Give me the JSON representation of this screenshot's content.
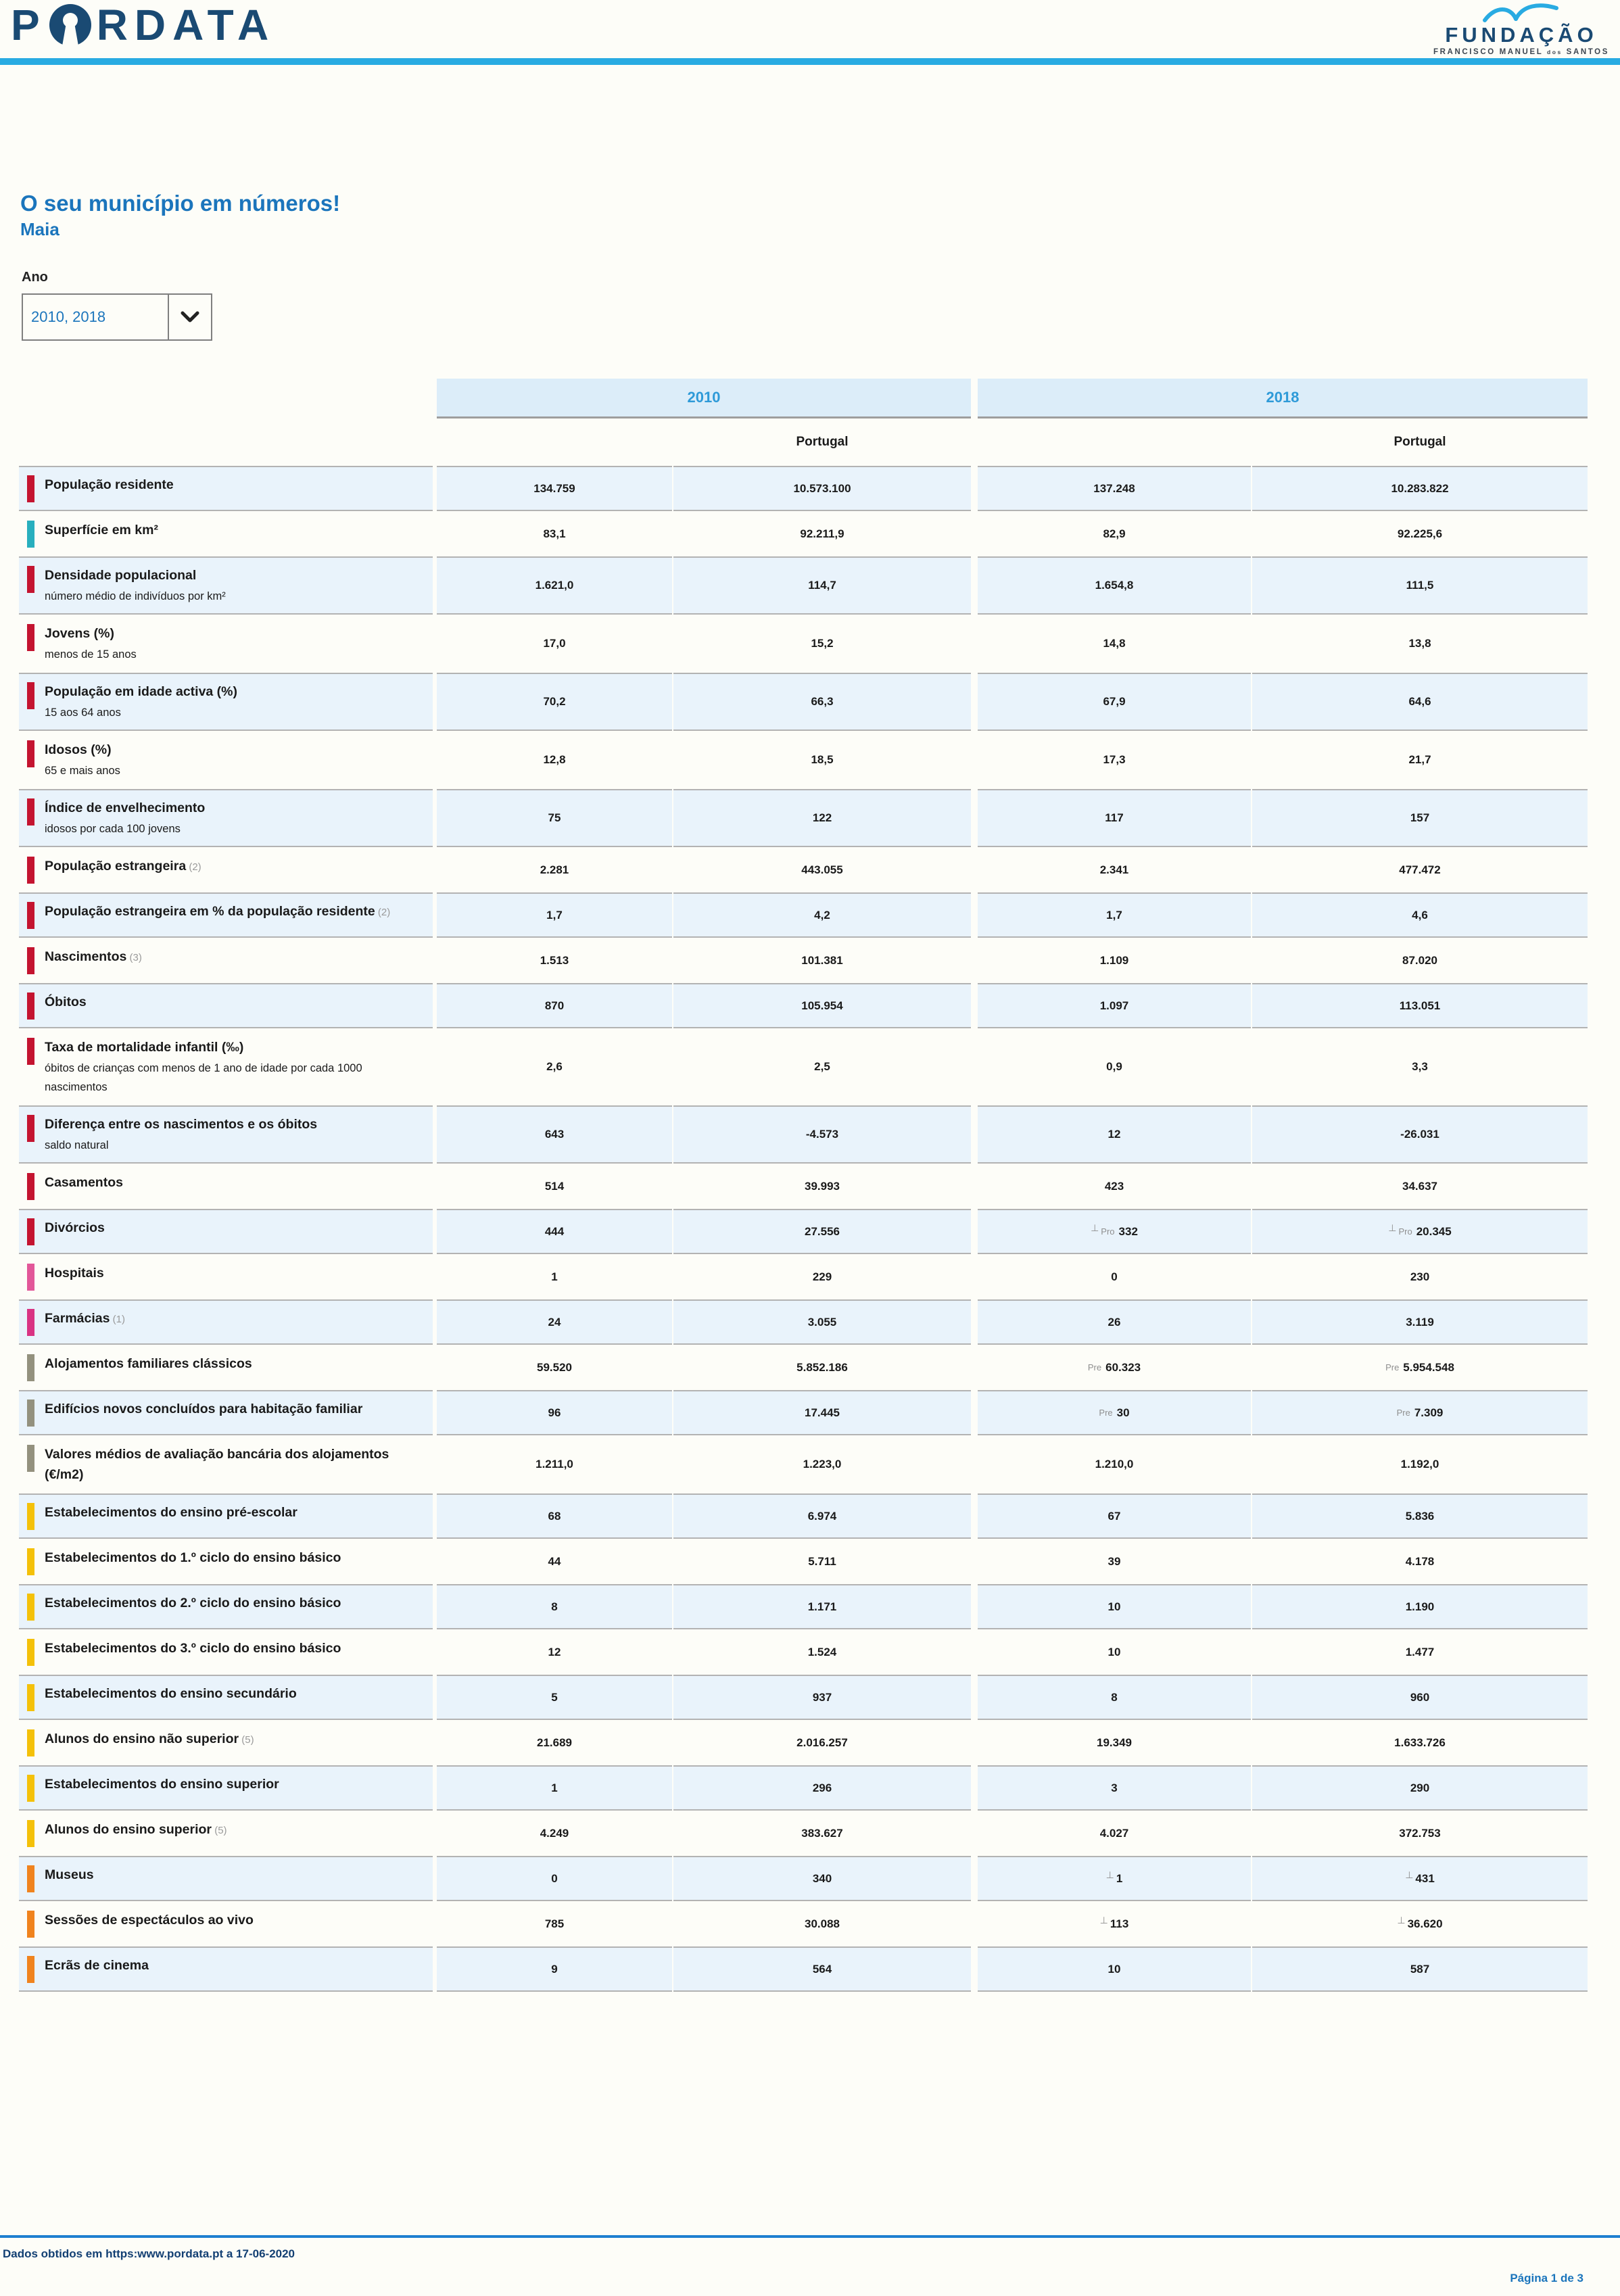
{
  "brand": {
    "pordata": {
      "p": "P",
      "rdata": "RDATA"
    },
    "foundation": {
      "title": "FUNDAÇÃO",
      "sub1": "FRANCISCO MANUEL",
      "sub2": "dos",
      "sub3": "SANTOS"
    }
  },
  "page": {
    "title": "O seu município em números!",
    "municipality": "Maia",
    "year_label": "Ano",
    "year_value": "2010, 2018"
  },
  "colors": {
    "accent_bar": "#29abe2",
    "title_blue": "#1b75bc",
    "year_header_blue": "#2e9ad8",
    "row_shade": "#e9f3fb",
    "red": "#c41430",
    "teal": "#28afbe",
    "pink": "#e25799",
    "magenta": "#d93383",
    "gray": "#93917e",
    "yellow": "#f4c10a",
    "orange": "#f0831e"
  },
  "table": {
    "groups": [
      {
        "label": "2010"
      },
      {
        "label": "2018"
      }
    ],
    "portugal": "Portugal",
    "rows": [
      {
        "label": "População residente",
        "cat": "red",
        "shade": true,
        "values": [
          "134.759",
          "10.573.100",
          "137.248",
          "10.283.822"
        ]
      },
      {
        "label": "Superfície em km²",
        "cat": "teal",
        "shade": false,
        "values": [
          "83,1",
          "92.211,9",
          "82,9",
          "92.225,6"
        ]
      },
      {
        "label": "Densidade populacional",
        "sub": "número médio de indivíduos por km²",
        "cat": "red",
        "shade": true,
        "values": [
          "1.621,0",
          "114,7",
          "1.654,8",
          "111,5"
        ]
      },
      {
        "label": "Jovens (%)",
        "sub": "menos de 15 anos",
        "cat": "red",
        "shade": false,
        "values": [
          "17,0",
          "15,2",
          "14,8",
          "13,8"
        ]
      },
      {
        "label": "População em idade activa (%)",
        "sub": "15 aos 64 anos",
        "cat": "red",
        "shade": true,
        "values": [
          "70,2",
          "66,3",
          "67,9",
          "64,6"
        ]
      },
      {
        "label": "Idosos (%)",
        "sub": "65 e mais anos",
        "cat": "red",
        "shade": false,
        "values": [
          "12,8",
          "18,5",
          "17,3",
          "21,7"
        ]
      },
      {
        "label": "Índice de envelhecimento",
        "sub": "idosos por cada 100 jovens",
        "cat": "red",
        "shade": true,
        "values": [
          "75",
          "122",
          "117",
          "157"
        ]
      },
      {
        "label": "População estrangeira",
        "note": "(2)",
        "cat": "red",
        "shade": false,
        "values": [
          "2.281",
          "443.055",
          "2.341",
          "477.472"
        ]
      },
      {
        "label": "População estrangeira em % da população residente",
        "note": "(2)",
        "cat": "red",
        "shade": true,
        "values": [
          "1,7",
          "4,2",
          "1,7",
          "4,6"
        ]
      },
      {
        "label": "Nascimentos",
        "note": "(3)",
        "cat": "red",
        "shade": false,
        "values": [
          "1.513",
          "101.381",
          "1.109",
          "87.020"
        ]
      },
      {
        "label": "Óbitos",
        "cat": "red",
        "shade": true,
        "values": [
          "870",
          "105.954",
          "1.097",
          "113.051"
        ]
      },
      {
        "label": "Taxa de mortalidade infantil (‰)",
        "sub": "óbitos de crianças com menos de 1 ano de idade por cada 1000 nascimentos",
        "cat": "red",
        "shade": false,
        "values": [
          "2,6",
          "2,5",
          "0,9",
          "3,3"
        ]
      },
      {
        "label": "Diferença entre os nascimentos e os óbitos",
        "sub": "saldo natural",
        "cat": "red",
        "shade": true,
        "values": [
          "643",
          "-4.573",
          "12",
          "-26.031"
        ]
      },
      {
        "label": "Casamentos",
        "cat": "red",
        "shade": false,
        "values": [
          "514",
          "39.993",
          "423",
          "34.637"
        ]
      },
      {
        "label": "Divórcios",
        "cat": "red",
        "shade": true,
        "values": [
          "444",
          "27.556",
          {
            "flags": [
              "⊥",
              "Pro"
            ],
            "v": "332"
          },
          {
            "flags": [
              "⊥",
              "Pro"
            ],
            "v": "20.345"
          }
        ]
      },
      {
        "label": "Hospitais",
        "cat": "pink",
        "shade": false,
        "values": [
          "1",
          "229",
          "0",
          "230"
        ]
      },
      {
        "label": "Farmácias",
        "note": "(1)",
        "cat": "magenta",
        "shade": true,
        "values": [
          "24",
          "3.055",
          "26",
          "3.119"
        ]
      },
      {
        "label": "Alojamentos familiares clássicos",
        "cat": "gray",
        "shade": false,
        "values": [
          "59.520",
          "5.852.186",
          {
            "flags": [
              "Pre"
            ],
            "v": "60.323"
          },
          {
            "flags": [
              "Pre"
            ],
            "v": "5.954.548"
          }
        ]
      },
      {
        "label": "Edifícios novos concluídos para habitação familiar",
        "cat": "gray",
        "shade": true,
        "values": [
          "96",
          "17.445",
          {
            "flags": [
              "Pre"
            ],
            "v": "30"
          },
          {
            "flags": [
              "Pre"
            ],
            "v": "7.309"
          }
        ]
      },
      {
        "label": "Valores médios de avaliação bancária dos alojamentos (€/m2)",
        "cat": "gray",
        "shade": false,
        "values": [
          "1.211,0",
          "1.223,0",
          "1.210,0",
          "1.192,0"
        ]
      },
      {
        "label": "Estabelecimentos do ensino pré-escolar",
        "cat": "yellow",
        "shade": true,
        "values": [
          "68",
          "6.974",
          "67",
          "5.836"
        ]
      },
      {
        "label": "Estabelecimentos do 1.º ciclo do ensino básico",
        "cat": "yellow",
        "shade": false,
        "values": [
          "44",
          "5.711",
          "39",
          "4.178"
        ]
      },
      {
        "label": "Estabelecimentos do 2.º ciclo do ensino básico",
        "cat": "yellow",
        "shade": true,
        "values": [
          "8",
          "1.171",
          "10",
          "1.190"
        ]
      },
      {
        "label": "Estabelecimentos do 3.º ciclo do ensino básico",
        "cat": "yellow",
        "shade": false,
        "values": [
          "12",
          "1.524",
          "10",
          "1.477"
        ]
      },
      {
        "label": "Estabelecimentos do ensino secundário",
        "cat": "yellow",
        "shade": true,
        "values": [
          "5",
          "937",
          "8",
          "960"
        ]
      },
      {
        "label": "Alunos do ensino não superior",
        "note": "(5)",
        "cat": "yellow",
        "shade": false,
        "values": [
          "21.689",
          "2.016.257",
          "19.349",
          "1.633.726"
        ]
      },
      {
        "label": "Estabelecimentos do ensino superior",
        "cat": "yellow",
        "shade": true,
        "values": [
          "1",
          "296",
          "3",
          "290"
        ]
      },
      {
        "label": "Alunos do ensino superior",
        "note": "(5)",
        "cat": "yellow",
        "shade": false,
        "values": [
          "4.249",
          "383.627",
          "4.027",
          "372.753"
        ]
      },
      {
        "label": "Museus",
        "cat": "orange",
        "shade": true,
        "values": [
          "0",
          "340",
          {
            "flags": [
              "⊥"
            ],
            "v": "1"
          },
          {
            "flags": [
              "⊥"
            ],
            "v": "431"
          }
        ]
      },
      {
        "label": "Sessões de espectáculos ao vivo",
        "cat": "orange",
        "shade": false,
        "values": [
          "785",
          "30.088",
          {
            "flags": [
              "⊥"
            ],
            "v": "113"
          },
          {
            "flags": [
              "⊥"
            ],
            "v": "36.620"
          }
        ]
      },
      {
        "label": "Ecrãs de cinema",
        "cat": "orange",
        "shade": true,
        "values": [
          "9",
          "564",
          "10",
          "587"
        ]
      }
    ]
  },
  "footer": {
    "source": "Dados obtidos em https:www.pordata.pt a 17-06-2020",
    "page": "Página 1 de 3"
  }
}
